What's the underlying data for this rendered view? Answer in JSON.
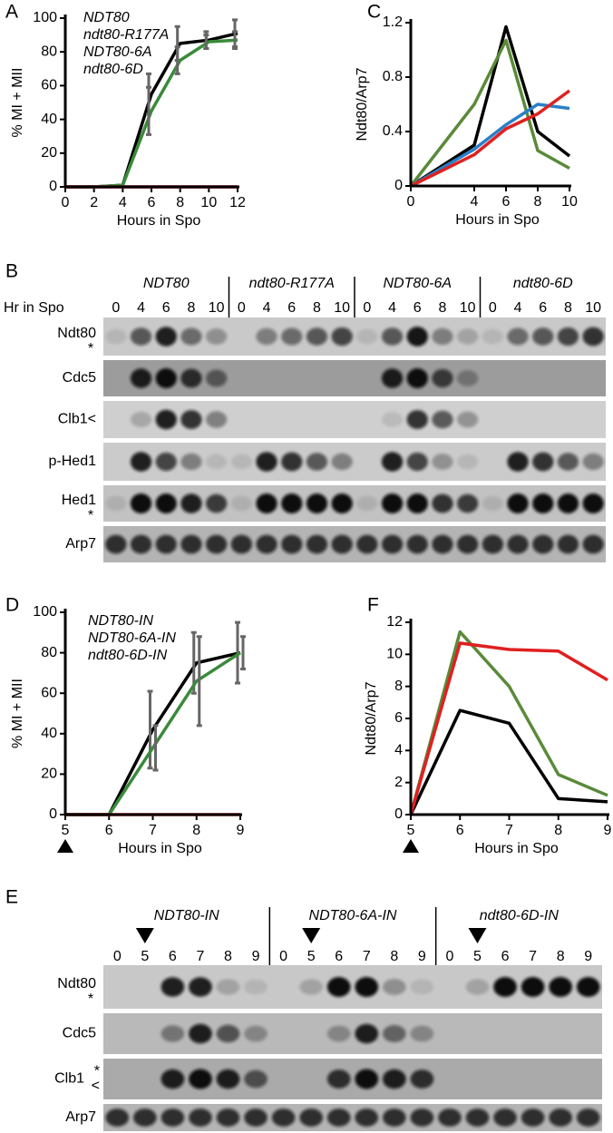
{
  "chart_data": [
    {
      "type": "line",
      "panel": "A",
      "ylabel": "% MI + MII",
      "xlabel": "Hours in Spo",
      "x": [
        0,
        2,
        4,
        6,
        8,
        10,
        12
      ],
      "xlim": [
        0,
        12
      ],
      "xticks": [
        0,
        2,
        4,
        6,
        8,
        10,
        12
      ],
      "ylim": [
        0,
        100
      ],
      "yticks": [
        0,
        20,
        40,
        60,
        80,
        100
      ],
      "series": [
        {
          "name": "NDT80",
          "color": "#000000",
          "values": [
            0,
            0,
            1,
            55,
            85,
            87,
            91
          ],
          "errors": [
            0,
            0,
            0,
            12,
            10,
            5,
            8
          ]
        },
        {
          "name": "ndt80-R177A",
          "color": "#2e3f8f",
          "values": [
            0,
            0,
            0,
            0,
            0,
            0,
            0
          ]
        },
        {
          "name": "NDT80-6A",
          "color": "#3a8a3a",
          "values": [
            0,
            0,
            1,
            45,
            75,
            86,
            87
          ],
          "errors": [
            0,
            0,
            0,
            14,
            8,
            4,
            5
          ]
        },
        {
          "name": "ndt80-6D",
          "color": "#e02020",
          "values": [
            0,
            0,
            0,
            0,
            0,
            0,
            0
          ]
        }
      ]
    },
    {
      "type": "line",
      "panel": "C",
      "ylabel": "Ndt80/Arp7",
      "xlabel": "Hours in Spo",
      "x": [
        0,
        4,
        6,
        8,
        10
      ],
      "xlim": [
        0,
        10
      ],
      "xticks": [
        0,
        4,
        6,
        8,
        10
      ],
      "ylim": [
        0,
        1.2
      ],
      "yticks": [
        0,
        0.4,
        0.8,
        1.2
      ],
      "series": [
        {
          "color": "#000000",
          "values": [
            0,
            0.3,
            1.17,
            0.4,
            0.22
          ]
        },
        {
          "color": "#5a8a3a",
          "values": [
            0,
            0.6,
            1.07,
            0.26,
            0.13
          ]
        },
        {
          "color": "#2a7fc8",
          "values": [
            0,
            0.27,
            0.45,
            0.6,
            0.57
          ]
        },
        {
          "color": "#e02020",
          "values": [
            0,
            0.23,
            0.42,
            0.53,
            0.7
          ]
        }
      ]
    },
    {
      "type": "line",
      "panel": "D",
      "ylabel": "% MI + MII",
      "xlabel": "Hours in Spo",
      "x": [
        5,
        6,
        7,
        8,
        9
      ],
      "xlim": [
        5,
        9
      ],
      "xticks": [
        5,
        6,
        7,
        8,
        9
      ],
      "ylim": [
        0,
        100
      ],
      "yticks": [
        0,
        20,
        40,
        60,
        80,
        100
      ],
      "series": [
        {
          "name": "NDT80-IN",
          "color": "#000000",
          "values": [
            0,
            0,
            42,
            75,
            80
          ],
          "errors": [
            0,
            0,
            19,
            15,
            15
          ]
        },
        {
          "name": "NDT80-6A-IN",
          "color": "#3a8a3a",
          "values": [
            0,
            0,
            33,
            66,
            80
          ],
          "errors": [
            0,
            0,
            11,
            22,
            8
          ]
        },
        {
          "name": "ndt80-6D-IN",
          "color": "#e02020",
          "values": [
            0,
            0,
            0,
            0,
            0
          ]
        }
      ]
    },
    {
      "type": "line",
      "panel": "F",
      "ylabel": "Ndt80/Arp7",
      "xlabel": "Hours in Spo",
      "x": [
        5,
        6,
        7,
        8,
        9
      ],
      "xlim": [
        5,
        9
      ],
      "xticks": [
        5,
        6,
        7,
        8,
        9
      ],
      "ylim": [
        0,
        12
      ],
      "yticks": [
        0,
        2,
        4,
        6,
        8,
        10,
        12
      ],
      "series": [
        {
          "color": "#000000",
          "values": [
            0,
            6.5,
            5.7,
            1.0,
            0.8
          ]
        },
        {
          "color": "#5a8a3a",
          "values": [
            0,
            11.4,
            8.0,
            2.5,
            1.2
          ]
        },
        {
          "color": "#e02020",
          "values": [
            0,
            10.7,
            10.3,
            10.2,
            8.4
          ]
        }
      ]
    }
  ],
  "blot_b": {
    "panel": "B",
    "time_label": "Hr in Spo",
    "groups": [
      {
        "name": "NDT80",
        "color": "#000000",
        "lanes": [
          "0",
          "4",
          "6",
          "8",
          "10"
        ]
      },
      {
        "name": "ndt80-R177A",
        "color": "#2e3f8f",
        "lanes": [
          "0",
          "4",
          "6",
          "8",
          "10"
        ]
      },
      {
        "name": "NDT80-6A",
        "color": "#3a8a3a",
        "lanes": [
          "0",
          "4",
          "6",
          "8",
          "10"
        ]
      },
      {
        "name": "ndt80-6D",
        "color": "#e02020",
        "lanes": [
          "0",
          "4",
          "6",
          "8",
          "10"
        ]
      }
    ],
    "rows": [
      {
        "label": "Ndt80",
        "markers": [
          "*"
        ]
      },
      {
        "label": "Cdc5"
      },
      {
        "label": "Clb1<"
      },
      {
        "label": "p-Hed1"
      },
      {
        "label": "Hed1",
        "markers": [
          "*"
        ]
      },
      {
        "label": "Arp7"
      }
    ]
  },
  "blot_e": {
    "panel": "E",
    "groups": [
      {
        "name": "NDT80-IN",
        "color": "#000000",
        "lanes": [
          "0",
          "5",
          "6",
          "7",
          "8",
          "9"
        ]
      },
      {
        "name": "NDT80-6A-IN",
        "color": "#3a8a3a",
        "lanes": [
          "0",
          "5",
          "6",
          "7",
          "8",
          "9"
        ]
      },
      {
        "name": "ndt80-6D-IN",
        "color": "#e02020",
        "lanes": [
          "0",
          "5",
          "6",
          "7",
          "8",
          "9"
        ]
      }
    ],
    "rows": [
      {
        "label": "Ndt80",
        "markers": [
          "*"
        ]
      },
      {
        "label": "Cdc5"
      },
      {
        "label": "Clb1",
        "markers": [
          "*",
          "<"
        ]
      },
      {
        "label": "Arp7"
      }
    ]
  }
}
